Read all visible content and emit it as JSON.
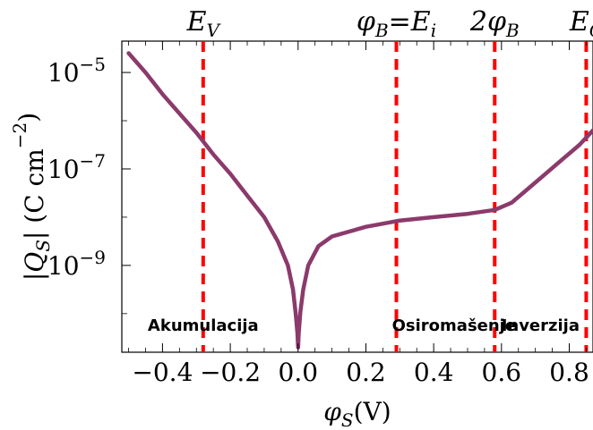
{
  "chart_data": {
    "type": "line",
    "title": "",
    "xlabel": "φ_S(V)",
    "ylabel": "|Q_S| (C cm^-2)",
    "x_ticks": [
      {
        "value": -0.4,
        "label": "−0.4"
      },
      {
        "value": -0.2,
        "label": "−0.2"
      },
      {
        "value": 0.0,
        "label": "0.0"
      },
      {
        "value": 0.2,
        "label": "0.2"
      },
      {
        "value": 0.4,
        "label": "0.4"
      },
      {
        "value": 0.6,
        "label": "0.6"
      },
      {
        "value": 0.8,
        "label": "0.8"
      }
    ],
    "y_ticks": [
      {
        "value": -5,
        "label": "10⁻⁵"
      },
      {
        "value": -7,
        "label": "10⁻⁷"
      },
      {
        "value": -9,
        "label": "10⁻⁹"
      }
    ],
    "xlim": [
      -0.52,
      0.87
    ],
    "ylim_log10": [
      -10.8,
      -4.35
    ],
    "y_scale": "log",
    "grid": false,
    "series": [
      {
        "color": "#8b3a6b",
        "points": [
          [
            -0.5,
            -4.6
          ],
          [
            -0.45,
            -5.0
          ],
          [
            -0.4,
            -5.45
          ],
          [
            -0.35,
            -5.85
          ],
          [
            -0.3,
            -6.25
          ],
          [
            -0.25,
            -6.7
          ],
          [
            -0.2,
            -7.1
          ],
          [
            -0.15,
            -7.55
          ],
          [
            -0.1,
            -8.0
          ],
          [
            -0.06,
            -8.5
          ],
          [
            -0.03,
            -9.0
          ],
          [
            -0.015,
            -9.5
          ],
          [
            -0.007,
            -10.0
          ],
          [
            -0.002,
            -10.4
          ],
          [
            0.0,
            -10.7
          ],
          [
            0.002,
            -10.4
          ],
          [
            0.007,
            -9.95
          ],
          [
            0.015,
            -9.5
          ],
          [
            0.03,
            -9.0
          ],
          [
            0.06,
            -8.6
          ],
          [
            0.1,
            -8.4
          ],
          [
            0.2,
            -8.2
          ],
          [
            0.3,
            -8.07
          ],
          [
            0.4,
            -8.0
          ],
          [
            0.5,
            -7.93
          ],
          [
            0.58,
            -7.85
          ],
          [
            0.63,
            -7.7
          ],
          [
            0.68,
            -7.4
          ],
          [
            0.73,
            -7.1
          ],
          [
            0.78,
            -6.8
          ],
          [
            0.83,
            -6.5
          ],
          [
            0.87,
            -6.2
          ]
        ]
      }
    ],
    "vlines": [
      {
        "x": -0.28,
        "label": "E",
        "sub": "V",
        "color": "#ff0000"
      },
      {
        "x": 0.29,
        "label": "φ",
        "sub": "B",
        "extra": "=E",
        "extra_sub": "i",
        "color": "#ff0000"
      },
      {
        "x": 0.58,
        "label": "2φ",
        "sub": "B",
        "color": "#ff0000"
      },
      {
        "x": 0.85,
        "label": "E",
        "sub": "C",
        "color": "#ff0000"
      }
    ],
    "region_labels": [
      {
        "text": "Akumulacija",
        "x": -0.28
      },
      {
        "text": "Osiromašenje",
        "x": 0.46
      },
      {
        "text": "Inverzija",
        "x": 0.715
      }
    ]
  }
}
